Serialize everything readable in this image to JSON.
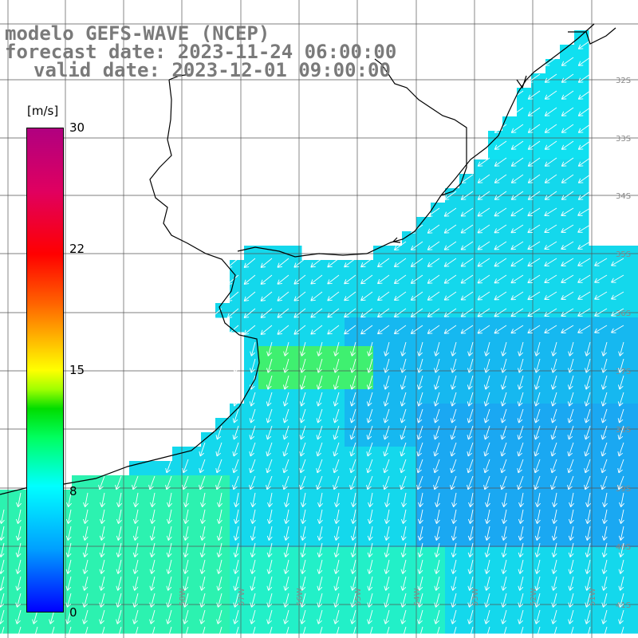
{
  "title": {
    "line1": "modelo GEFS-WAVE (NCEP)",
    "line2": "forecast date: 2023-11-24 06:00:00",
    "line3": "valid date: 2023-12-01 09:00:00"
  },
  "colorbar": {
    "unit": "[m/s]",
    "ticks": [
      "30",
      "22",
      "15",
      "8",
      "0"
    ],
    "min": 0,
    "max": 30,
    "colors": [
      "#0000ff",
      "#00a0ff",
      "#00ffff",
      "#00ff60",
      "#00dd00",
      "#ffff00",
      "#ff6000",
      "#ff0000",
      "#b00080"
    ]
  },
  "map": {
    "field": "wind speed",
    "land_color": "#ffffff",
    "coast_color": "#000000",
    "grid_color": "#555555",
    "lat_labels": [
      "32S",
      "33S",
      "34S",
      "35S",
      "36S",
      "37S",
      "38S",
      "39S",
      "40S",
      "41S"
    ],
    "lon_labels": [
      "58W",
      "57W",
      "56W",
      "55W",
      "54W",
      "53W",
      "52W",
      "51W"
    ],
    "wind_direction": "from NE (arrows pointing SW to S)"
  }
}
